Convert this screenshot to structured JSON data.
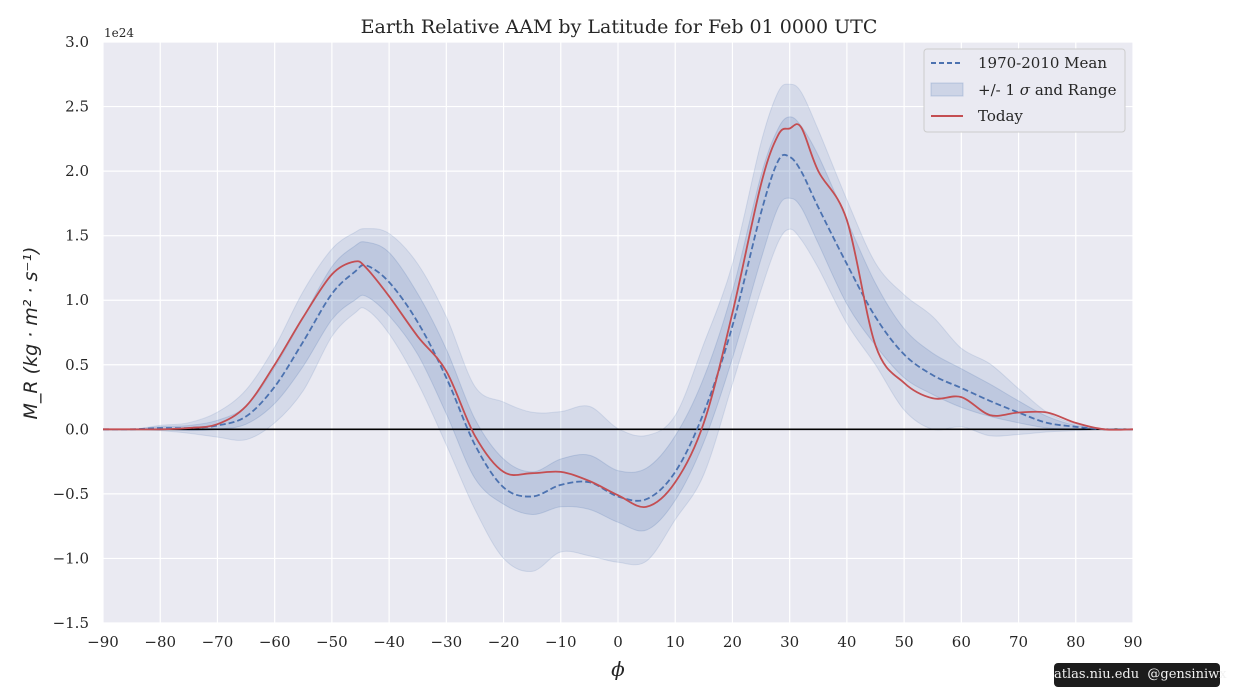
{
  "chart_data": {
    "type": "line",
    "title": "Earth Relative AAM by Latitude for Feb 01 0000 UTC",
    "xlabel": "ϕ",
    "ylabel": "M_R (kg · m² · s⁻¹)",
    "y_scale_label": "1e24",
    "xlim": [
      -90,
      90
    ],
    "ylim": [
      -1.5,
      3.0
    ],
    "x_ticks": [
      -90,
      -80,
      -70,
      -60,
      -50,
      -40,
      -30,
      -20,
      -10,
      0,
      10,
      20,
      30,
      40,
      50,
      60,
      70,
      80,
      90
    ],
    "x_tick_labels": [
      "−90",
      "−80",
      "−70",
      "−60",
      "−50",
      "−40",
      "−30",
      "−20",
      "−10",
      "0",
      "10",
      "20",
      "30",
      "40",
      "50",
      "60",
      "70",
      "80",
      "90"
    ],
    "y_ticks": [
      -1.5,
      -1.0,
      -0.5,
      0.0,
      0.5,
      1.0,
      1.5,
      2.0,
      2.5,
      3.0
    ],
    "y_tick_labels": [
      "−1.5",
      "−1.0",
      "−0.5",
      "0.0",
      "0.5",
      "1.0",
      "1.5",
      "2.0",
      "2.5",
      "3.0"
    ],
    "grid": true,
    "legend_position": "top-right",
    "legend": {
      "mean": "1970-2010 Mean",
      "band_prefix": "+/- 1",
      "band_symbol": "σ",
      "band_suffix": "and Range",
      "today": "Today"
    },
    "colors": {
      "mean": "#4c72b0",
      "band": "#4c72b0",
      "today": "#c44e52",
      "background": "#eaeaf2",
      "grid": "#ffffff",
      "zero_line": "#000000"
    },
    "x": [
      -90,
      -85,
      -80,
      -75,
      -70,
      -65,
      -60,
      -55,
      -50,
      -46,
      -44,
      -40,
      -35,
      -30,
      -25,
      -20,
      -15,
      -10,
      -5,
      0,
      5,
      10,
      15,
      20,
      25,
      28,
      30,
      32,
      35,
      40,
      45,
      50,
      55,
      60,
      65,
      70,
      75,
      80,
      85,
      90
    ],
    "series": [
      {
        "name": "1970-2010 Mean",
        "values": [
          0.0,
          0.0,
          0.01,
          0.01,
          0.03,
          0.1,
          0.33,
          0.68,
          1.05,
          1.22,
          1.27,
          1.14,
          0.83,
          0.4,
          -0.12,
          -0.45,
          -0.52,
          -0.43,
          -0.41,
          -0.52,
          -0.54,
          -0.33,
          0.13,
          0.8,
          1.68,
          2.08,
          2.11,
          2.0,
          1.72,
          1.28,
          0.87,
          0.58,
          0.42,
          0.32,
          0.22,
          0.13,
          0.05,
          0.02,
          0.0,
          0.0
        ]
      },
      {
        "name": "Today",
        "values": [
          0.0,
          0.0,
          0.0,
          0.01,
          0.04,
          0.18,
          0.5,
          0.87,
          1.2,
          1.3,
          1.25,
          1.03,
          0.72,
          0.45,
          -0.05,
          -0.33,
          -0.34,
          -0.33,
          -0.4,
          -0.51,
          -0.6,
          -0.41,
          0.05,
          0.9,
          1.9,
          2.28,
          2.33,
          2.34,
          2.0,
          1.62,
          0.65,
          0.36,
          0.24,
          0.25,
          0.11,
          0.13,
          0.13,
          0.05,
          0.0,
          0.0
        ]
      }
    ],
    "sigma_band": {
      "lower": [
        0.0,
        0.0,
        0.0,
        -0.01,
        0.0,
        0.04,
        0.2,
        0.49,
        0.85,
        1.0,
        1.03,
        0.88,
        0.58,
        0.12,
        -0.38,
        -0.58,
        -0.66,
        -0.6,
        -0.62,
        -0.72,
        -0.78,
        -0.55,
        -0.1,
        0.55,
        1.32,
        1.72,
        1.79,
        1.72,
        1.44,
        0.97,
        0.65,
        0.4,
        0.27,
        0.17,
        0.1,
        0.05,
        0.01,
        0.0,
        0.0,
        0.0
      ],
      "upper": [
        0.0,
        0.0,
        0.02,
        0.03,
        0.07,
        0.18,
        0.48,
        0.87,
        1.26,
        1.42,
        1.45,
        1.37,
        1.05,
        0.62,
        0.08,
        -0.23,
        -0.33,
        -0.23,
        -0.2,
        -0.32,
        -0.3,
        -0.05,
        0.4,
        1.07,
        1.97,
        2.33,
        2.42,
        2.35,
        2.12,
        1.62,
        1.13,
        0.78,
        0.59,
        0.47,
        0.35,
        0.22,
        0.1,
        0.03,
        0.0,
        0.0
      ]
    },
    "range_band": {
      "lower": [
        0.0,
        0.0,
        -0.01,
        -0.03,
        -0.06,
        -0.08,
        0.05,
        0.3,
        0.72,
        0.9,
        0.93,
        0.74,
        0.36,
        -0.12,
        -0.62,
        -1.0,
        -1.1,
        -0.95,
        -0.98,
        -1.03,
        -1.02,
        -0.7,
        -0.35,
        0.35,
        1.08,
        1.45,
        1.55,
        1.47,
        1.25,
        0.82,
        0.5,
        0.15,
        0.0,
        0.02,
        -0.05,
        -0.04,
        -0.02,
        -0.01,
        0.0,
        0.0
      ]
    }
  },
  "watermark": {
    "site": "atlas.niu.edu",
    "handle": "@gensiniwx"
  }
}
